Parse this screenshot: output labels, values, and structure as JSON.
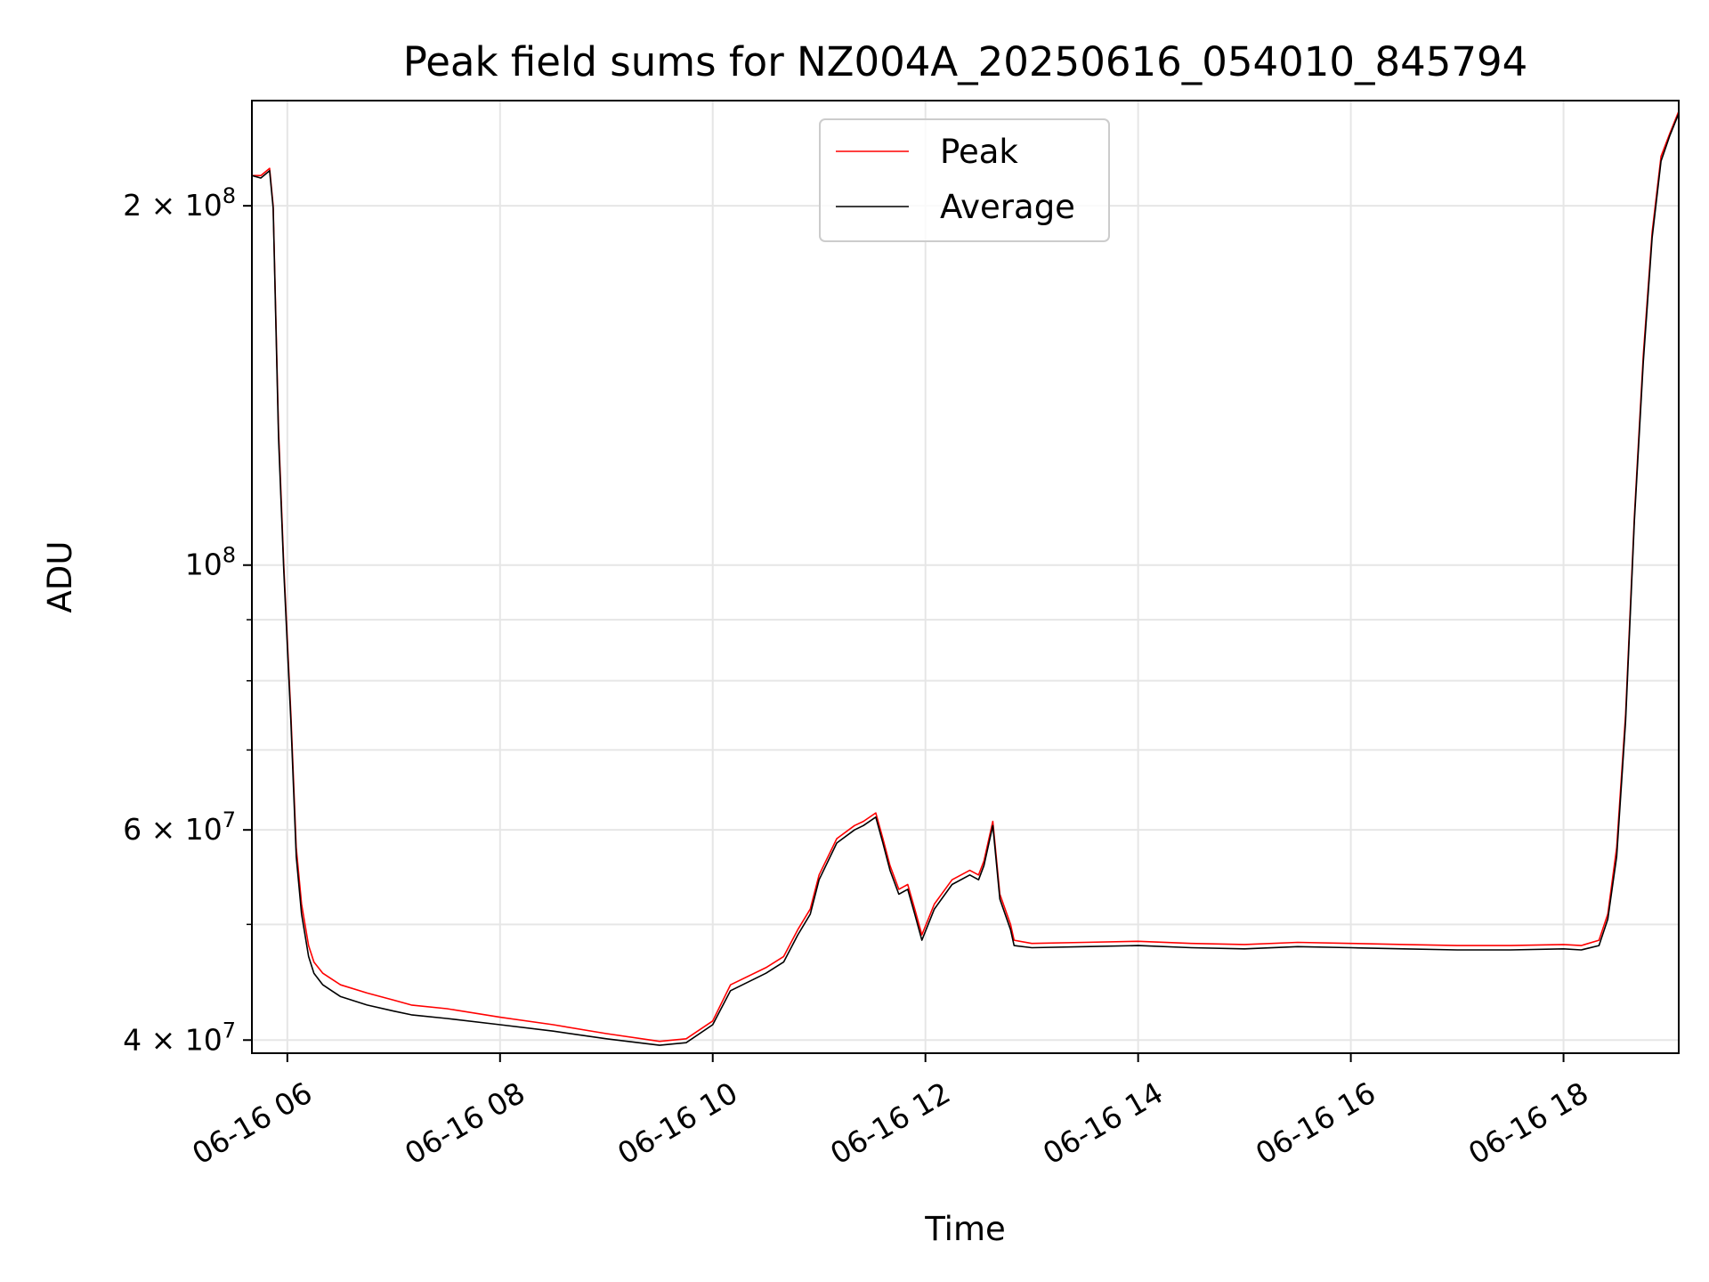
{
  "chart_data": {
    "type": "line",
    "title": "Peak field sums for NZ004A_20250616_054010_845794",
    "xlabel": "Time",
    "ylabel": "ADU",
    "x_scale": "time",
    "y_scale": "log",
    "xlim": [
      "2025-06-16 05:40",
      "2025-06-16 19:05"
    ],
    "ylim": [
      39000000,
      245000000
    ],
    "grid": true,
    "legend_position": "top-center",
    "x_tick_labels": [
      "06-16 06",
      "06-16 08",
      "06-16 10",
      "06-16 12",
      "06-16 14",
      "06-16 16",
      "06-16 18"
    ],
    "x_tick_values": [
      "2025-06-16 06:00",
      "2025-06-16 08:00",
      "2025-06-16 10:00",
      "2025-06-16 12:00",
      "2025-06-16 14:00",
      "2025-06-16 16:00",
      "2025-06-16 18:00"
    ],
    "y_tick_values": [
      40000000,
      60000000,
      100000000,
      200000000
    ],
    "y_tick_labels": [
      {
        "mantissa": "4",
        "times": "×",
        "base": "10",
        "exp": "7"
      },
      {
        "mantissa": "6",
        "times": "×",
        "base": "10",
        "exp": "7"
      },
      {
        "mantissa": "",
        "times": "",
        "base": "10",
        "exp": "8"
      },
      {
        "mantissa": "2",
        "times": "×",
        "base": "10",
        "exp": "8"
      }
    ],
    "y_minor_tick_values": [
      50000000,
      70000000,
      80000000,
      90000000
    ],
    "series": [
      {
        "name": "Peak",
        "color": "#ff0000",
        "x": [
          "2025-06-16 05:40",
          "2025-06-16 05:45",
          "2025-06-16 05:50",
          "2025-06-16 05:52",
          "2025-06-16 05:55",
          "2025-06-16 05:58",
          "2025-06-16 06:02",
          "2025-06-16 06:05",
          "2025-06-16 06:08",
          "2025-06-16 06:12",
          "2025-06-16 06:15",
          "2025-06-16 06:20",
          "2025-06-16 06:25",
          "2025-06-16 06:30",
          "2025-06-16 06:45",
          "2025-06-16 07:00",
          "2025-06-16 07:10",
          "2025-06-16 07:30",
          "2025-06-16 08:00",
          "2025-06-16 08:30",
          "2025-06-16 09:00",
          "2025-06-16 09:30",
          "2025-06-16 09:45",
          "2025-06-16 10:00",
          "2025-06-16 10:10",
          "2025-06-16 10:30",
          "2025-06-16 10:40",
          "2025-06-16 10:48",
          "2025-06-16 10:55",
          "2025-06-16 11:00",
          "2025-06-16 11:10",
          "2025-06-16 11:20",
          "2025-06-16 11:25",
          "2025-06-16 11:32",
          "2025-06-16 11:36",
          "2025-06-16 11:40",
          "2025-06-16 11:45",
          "2025-06-16 11:50",
          "2025-06-16 11:54",
          "2025-06-16 11:58",
          "2025-06-16 12:05",
          "2025-06-16 12:15",
          "2025-06-16 12:25",
          "2025-06-16 12:30",
          "2025-06-16 12:33",
          "2025-06-16 12:38",
          "2025-06-16 12:42",
          "2025-06-16 12:48",
          "2025-06-16 12:50",
          "2025-06-16 13:00",
          "2025-06-16 13:30",
          "2025-06-16 14:00",
          "2025-06-16 14:30",
          "2025-06-16 15:00",
          "2025-06-16 15:30",
          "2025-06-16 16:00",
          "2025-06-16 16:30",
          "2025-06-16 17:00",
          "2025-06-16 17:30",
          "2025-06-16 18:00",
          "2025-06-16 18:10",
          "2025-06-16 18:20",
          "2025-06-16 18:25",
          "2025-06-16 18:30",
          "2025-06-16 18:35",
          "2025-06-16 18:40",
          "2025-06-16 18:45",
          "2025-06-16 18:50",
          "2025-06-16 18:55",
          "2025-06-16 19:00",
          "2025-06-16 19:05"
        ],
        "values": [
          212000000,
          212000000,
          215000000,
          200000000,
          130000000,
          100000000,
          75000000,
          58000000,
          52000000,
          48000000,
          46500000,
          45500000,
          45000000,
          44500000,
          43800000,
          43200000,
          42800000,
          42500000,
          41800000,
          41200000,
          40500000,
          39900000,
          40100000,
          41500000,
          44500000,
          46000000,
          47000000,
          49500000,
          51500000,
          55000000,
          59000000,
          60500000,
          61000000,
          62000000,
          59000000,
          56000000,
          53500000,
          54000000,
          51500000,
          49000000,
          52000000,
          54500000,
          55500000,
          55000000,
          56500000,
          61000000,
          53000000,
          50000000,
          48500000,
          48200000,
          48300000,
          48400000,
          48200000,
          48100000,
          48300000,
          48200000,
          48100000,
          48000000,
          48000000,
          48100000,
          48000000,
          48500000,
          51000000,
          58000000,
          75000000,
          110000000,
          150000000,
          190000000,
          220000000,
          230000000,
          240000000
        ]
      },
      {
        "name": "Average",
        "color": "#000000",
        "x": [
          "2025-06-16 05:40",
          "2025-06-16 05:45",
          "2025-06-16 05:50",
          "2025-06-16 05:52",
          "2025-06-16 05:55",
          "2025-06-16 05:58",
          "2025-06-16 06:02",
          "2025-06-16 06:05",
          "2025-06-16 06:08",
          "2025-06-16 06:12",
          "2025-06-16 06:15",
          "2025-06-16 06:20",
          "2025-06-16 06:25",
          "2025-06-16 06:30",
          "2025-06-16 06:45",
          "2025-06-16 07:00",
          "2025-06-16 07:10",
          "2025-06-16 07:30",
          "2025-06-16 08:00",
          "2025-06-16 08:30",
          "2025-06-16 09:00",
          "2025-06-16 09:30",
          "2025-06-16 09:45",
          "2025-06-16 10:00",
          "2025-06-16 10:10",
          "2025-06-16 10:30",
          "2025-06-16 10:40",
          "2025-06-16 10:48",
          "2025-06-16 10:55",
          "2025-06-16 11:00",
          "2025-06-16 11:10",
          "2025-06-16 11:20",
          "2025-06-16 11:25",
          "2025-06-16 11:32",
          "2025-06-16 11:36",
          "2025-06-16 11:40",
          "2025-06-16 11:45",
          "2025-06-16 11:50",
          "2025-06-16 11:54",
          "2025-06-16 11:58",
          "2025-06-16 12:05",
          "2025-06-16 12:15",
          "2025-06-16 12:25",
          "2025-06-16 12:30",
          "2025-06-16 12:33",
          "2025-06-16 12:38",
          "2025-06-16 12:42",
          "2025-06-16 12:48",
          "2025-06-16 12:50",
          "2025-06-16 13:00",
          "2025-06-16 13:30",
          "2025-06-16 14:00",
          "2025-06-16 14:30",
          "2025-06-16 15:00",
          "2025-06-16 15:30",
          "2025-06-16 16:00",
          "2025-06-16 16:30",
          "2025-06-16 17:00",
          "2025-06-16 17:30",
          "2025-06-16 18:00",
          "2025-06-16 18:10",
          "2025-06-16 18:20",
          "2025-06-16 18:25",
          "2025-06-16 18:30",
          "2025-06-16 18:35",
          "2025-06-16 18:40",
          "2025-06-16 18:45",
          "2025-06-16 18:50",
          "2025-06-16 18:55",
          "2025-06-16 19:00",
          "2025-06-16 19:05"
        ],
        "values": [
          212000000,
          211000000,
          214000000,
          199000000,
          128000000,
          99000000,
          74000000,
          57000000,
          51000000,
          47000000,
          45500000,
          44500000,
          44000000,
          43500000,
          42800000,
          42300000,
          42000000,
          41700000,
          41200000,
          40700000,
          40100000,
          39600000,
          39800000,
          41200000,
          44000000,
          45500000,
          46500000,
          49000000,
          51000000,
          54500000,
          58500000,
          60000000,
          60500000,
          61500000,
          58500000,
          55500000,
          53000000,
          53500000,
          51000000,
          48500000,
          51500000,
          54000000,
          55000000,
          54500000,
          56000000,
          60500000,
          52500000,
          49500000,
          48000000,
          47800000,
          47900000,
          48000000,
          47800000,
          47700000,
          47900000,
          47800000,
          47700000,
          47600000,
          47600000,
          47700000,
          47600000,
          48000000,
          50500000,
          57000000,
          74000000,
          109000000,
          148000000,
          188000000,
          218000000,
          229000000,
          239000000
        ]
      }
    ]
  }
}
